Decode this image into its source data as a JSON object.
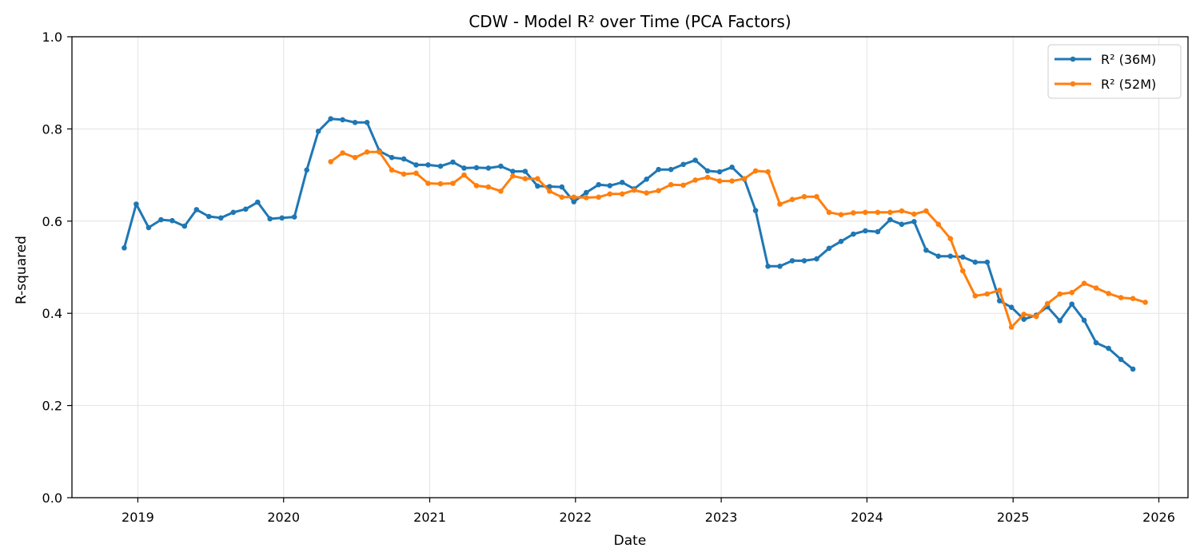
{
  "chart_data": {
    "type": "line",
    "title": "CDW - Model R² over Time (PCA Factors)",
    "xlabel": "Date",
    "ylabel": "R-squared",
    "xlim": [
      "2018-07-20",
      "2026-03-15"
    ],
    "ylim": [
      0,
      1
    ],
    "x_ticks": [
      "2019",
      "2020",
      "2021",
      "2022",
      "2023",
      "2024",
      "2025",
      "2026"
    ],
    "y_ticks": [
      "0.0",
      "0.2",
      "0.4",
      "0.6",
      "0.8",
      "1.0"
    ],
    "grid": true,
    "legend_position": "top-right",
    "series": [
      {
        "name": "R² (36M)",
        "color": "#1f77b4",
        "start": "2018-11",
        "values": [
          0.542,
          0.637,
          0.586,
          0.603,
          0.601,
          0.589,
          0.625,
          0.61,
          0.607,
          0.619,
          0.626,
          0.641,
          0.605,
          0.607,
          0.609,
          0.711,
          0.795,
          0.822,
          0.82,
          0.814,
          0.814,
          0.752,
          0.738,
          0.735,
          0.722,
          0.722,
          0.719,
          0.728,
          0.715,
          0.716,
          0.715,
          0.719,
          0.708,
          0.708,
          0.676,
          0.675,
          0.674,
          0.642,
          0.662,
          0.679,
          0.677,
          0.684,
          0.67,
          0.691,
          0.712,
          0.712,
          0.723,
          0.732,
          0.709,
          0.707,
          0.717,
          0.691,
          0.623,
          0.502,
          0.502,
          0.514,
          0.514,
          0.518,
          0.541,
          0.556,
          0.572,
          0.579,
          0.577,
          0.603,
          0.593,
          0.599,
          0.537,
          0.524,
          0.524,
          0.522,
          0.511,
          0.511,
          0.427,
          0.413,
          0.387,
          0.396,
          0.414,
          0.384,
          0.42,
          0.385,
          0.336,
          0.324,
          0.3,
          0.279
        ]
      },
      {
        "name": "R² (52M)",
        "color": "#ff7f0e",
        "start": "2020-04",
        "values": [
          0.729,
          0.748,
          0.738,
          0.75,
          0.75,
          0.711,
          0.702,
          0.704,
          0.682,
          0.681,
          0.682,
          0.7,
          0.677,
          0.674,
          0.665,
          0.698,
          0.692,
          0.692,
          0.665,
          0.652,
          0.652,
          0.651,
          0.652,
          0.659,
          0.659,
          0.667,
          0.661,
          0.666,
          0.679,
          0.678,
          0.689,
          0.695,
          0.687,
          0.687,
          0.692,
          0.709,
          0.707,
          0.637,
          0.647,
          0.653,
          0.653,
          0.619,
          0.614,
          0.618,
          0.619,
          0.619,
          0.619,
          0.622,
          0.615,
          0.622,
          0.593,
          0.562,
          0.492,
          0.438,
          0.442,
          0.45,
          0.37,
          0.398,
          0.393,
          0.421,
          0.442,
          0.445,
          0.465,
          0.455,
          0.443,
          0.434,
          0.432,
          0.424
        ]
      }
    ]
  }
}
